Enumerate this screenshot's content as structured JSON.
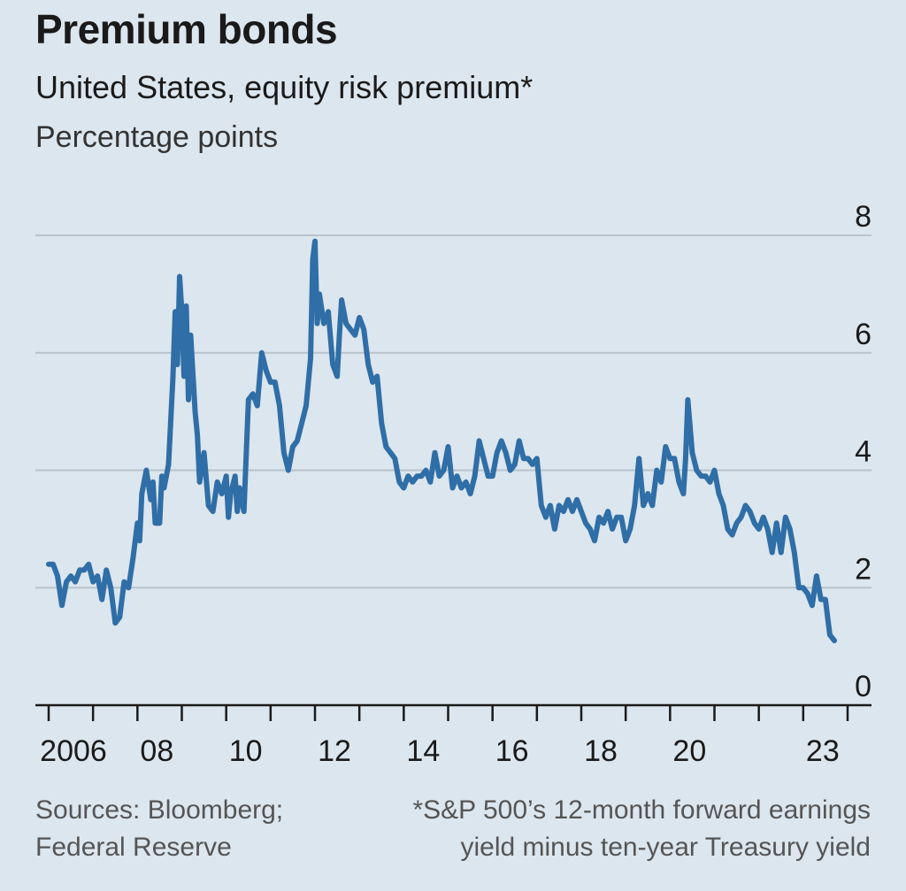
{
  "header": {
    "title": "Premium bonds",
    "subtitle": "United States, equity risk premium*",
    "unit": "Percentage points"
  },
  "footer": {
    "sources_line1": "Sources: Bloomberg;",
    "sources_line2": "Federal Reserve",
    "note_line1": "*S&P 500’s 12-month forward earnings",
    "note_line2": "yield minus ten-year Treasury yield"
  },
  "colors": {
    "background": "#dce6ee",
    "line": "#2f6ea6",
    "grid": "#b8c3cc"
  },
  "chart_data": {
    "type": "line",
    "title": "Premium bonds",
    "subtitle": "United States, equity risk premium*",
    "ylabel": "Percentage points",
    "xlim": [
      2005.8,
      2024.5
    ],
    "ylim": [
      0,
      8
    ],
    "yticks": [
      0,
      2,
      4,
      6,
      8
    ],
    "ytick_labels": [
      "0",
      "2",
      "4",
      "6",
      "8"
    ],
    "xticks": [
      2006,
      2007,
      2008,
      2009,
      2010,
      2011,
      2012,
      2013,
      2014,
      2015,
      2016,
      2017,
      2018,
      2019,
      2020,
      2021,
      2022,
      2023,
      2024
    ],
    "xtick_labels": [
      {
        "x": 2006,
        "label": "2006"
      },
      {
        "x": 2008,
        "label": "08"
      },
      {
        "x": 2010,
        "label": "10"
      },
      {
        "x": 2012,
        "label": "12"
      },
      {
        "x": 2014,
        "label": "14"
      },
      {
        "x": 2016,
        "label": "16"
      },
      {
        "x": 2018,
        "label": "18"
      },
      {
        "x": 2020,
        "label": "20"
      },
      {
        "x": 2023,
        "label": "23"
      }
    ],
    "grid": true,
    "series": [
      {
        "name": "Equity risk premium",
        "points": [
          [
            2006.0,
            2.4
          ],
          [
            2006.1,
            2.4
          ],
          [
            2006.2,
            2.2
          ],
          [
            2006.3,
            1.7
          ],
          [
            2006.4,
            2.1
          ],
          [
            2006.5,
            2.2
          ],
          [
            2006.6,
            2.1
          ],
          [
            2006.7,
            2.3
          ],
          [
            2006.8,
            2.3
          ],
          [
            2006.9,
            2.4
          ],
          [
            2007.0,
            2.1
          ],
          [
            2007.1,
            2.2
          ],
          [
            2007.2,
            1.8
          ],
          [
            2007.3,
            2.3
          ],
          [
            2007.4,
            2.0
          ],
          [
            2007.5,
            1.4
          ],
          [
            2007.6,
            1.5
          ],
          [
            2007.7,
            2.1
          ],
          [
            2007.8,
            2.0
          ],
          [
            2007.9,
            2.5
          ],
          [
            2008.0,
            3.1
          ],
          [
            2008.05,
            2.8
          ],
          [
            2008.1,
            3.6
          ],
          [
            2008.2,
            4.0
          ],
          [
            2008.3,
            3.5
          ],
          [
            2008.35,
            3.8
          ],
          [
            2008.4,
            3.1
          ],
          [
            2008.5,
            3.1
          ],
          [
            2008.55,
            3.9
          ],
          [
            2008.6,
            3.7
          ],
          [
            2008.7,
            4.1
          ],
          [
            2008.8,
            5.6
          ],
          [
            2008.85,
            6.7
          ],
          [
            2008.9,
            5.8
          ],
          [
            2008.95,
            7.3
          ],
          [
            2009.0,
            6.7
          ],
          [
            2009.05,
            5.6
          ],
          [
            2009.1,
            6.8
          ],
          [
            2009.15,
            5.2
          ],
          [
            2009.2,
            6.3
          ],
          [
            2009.3,
            5.0
          ],
          [
            2009.35,
            4.6
          ],
          [
            2009.4,
            3.8
          ],
          [
            2009.5,
            4.3
          ],
          [
            2009.6,
            3.4
          ],
          [
            2009.7,
            3.3
          ],
          [
            2009.8,
            3.8
          ],
          [
            2009.9,
            3.6
          ],
          [
            2010.0,
            3.9
          ],
          [
            2010.05,
            3.2
          ],
          [
            2010.1,
            3.6
          ],
          [
            2010.2,
            3.9
          ],
          [
            2010.25,
            3.3
          ],
          [
            2010.3,
            3.7
          ],
          [
            2010.4,
            3.3
          ],
          [
            2010.5,
            5.2
          ],
          [
            2010.6,
            5.3
          ],
          [
            2010.7,
            5.1
          ],
          [
            2010.8,
            6.0
          ],
          [
            2010.9,
            5.7
          ],
          [
            2011.0,
            5.5
          ],
          [
            2011.1,
            5.5
          ],
          [
            2011.2,
            5.1
          ],
          [
            2011.3,
            4.3
          ],
          [
            2011.4,
            4.0
          ],
          [
            2011.5,
            4.4
          ],
          [
            2011.6,
            4.5
          ],
          [
            2011.7,
            4.8
          ],
          [
            2011.8,
            5.1
          ],
          [
            2011.9,
            5.9
          ],
          [
            2011.95,
            7.6
          ],
          [
            2012.0,
            7.9
          ],
          [
            2012.05,
            6.5
          ],
          [
            2012.1,
            7.0
          ],
          [
            2012.2,
            6.5
          ],
          [
            2012.3,
            6.7
          ],
          [
            2012.4,
            5.8
          ],
          [
            2012.5,
            5.6
          ],
          [
            2012.55,
            6.3
          ],
          [
            2012.6,
            6.9
          ],
          [
            2012.7,
            6.5
          ],
          [
            2012.8,
            6.4
          ],
          [
            2012.9,
            6.3
          ],
          [
            2013.0,
            6.6
          ],
          [
            2013.1,
            6.4
          ],
          [
            2013.2,
            5.8
          ],
          [
            2013.3,
            5.5
          ],
          [
            2013.4,
            5.6
          ],
          [
            2013.5,
            4.8
          ],
          [
            2013.6,
            4.4
          ],
          [
            2013.7,
            4.3
          ],
          [
            2013.8,
            4.2
          ],
          [
            2013.9,
            3.8
          ],
          [
            2014.0,
            3.7
          ],
          [
            2014.1,
            3.9
          ],
          [
            2014.2,
            3.8
          ],
          [
            2014.3,
            3.9
          ],
          [
            2014.4,
            3.9
          ],
          [
            2014.5,
            4.0
          ],
          [
            2014.6,
            3.8
          ],
          [
            2014.7,
            4.3
          ],
          [
            2014.8,
            3.9
          ],
          [
            2014.9,
            4.0
          ],
          [
            2015.0,
            4.4
          ],
          [
            2015.1,
            3.7
          ],
          [
            2015.2,
            3.9
          ],
          [
            2015.3,
            3.7
          ],
          [
            2015.4,
            3.8
          ],
          [
            2015.5,
            3.6
          ],
          [
            2015.6,
            3.9
          ],
          [
            2015.7,
            4.5
          ],
          [
            2015.8,
            4.2
          ],
          [
            2015.9,
            3.9
          ],
          [
            2016.0,
            3.9
          ],
          [
            2016.1,
            4.3
          ],
          [
            2016.2,
            4.5
          ],
          [
            2016.3,
            4.3
          ],
          [
            2016.4,
            4.0
          ],
          [
            2016.5,
            4.1
          ],
          [
            2016.6,
            4.5
          ],
          [
            2016.7,
            4.2
          ],
          [
            2016.8,
            4.2
          ],
          [
            2016.9,
            4.1
          ],
          [
            2017.0,
            4.2
          ],
          [
            2017.1,
            3.4
          ],
          [
            2017.2,
            3.2
          ],
          [
            2017.3,
            3.4
          ],
          [
            2017.4,
            3.0
          ],
          [
            2017.5,
            3.4
          ],
          [
            2017.6,
            3.3
          ],
          [
            2017.7,
            3.5
          ],
          [
            2017.8,
            3.3
          ],
          [
            2017.9,
            3.5
          ],
          [
            2018.0,
            3.3
          ],
          [
            2018.1,
            3.1
          ],
          [
            2018.2,
            3.0
          ],
          [
            2018.3,
            2.8
          ],
          [
            2018.4,
            3.2
          ],
          [
            2018.5,
            3.1
          ],
          [
            2018.6,
            3.3
          ],
          [
            2018.7,
            3.0
          ],
          [
            2018.8,
            3.2
          ],
          [
            2018.9,
            3.2
          ],
          [
            2019.0,
            2.8
          ],
          [
            2019.1,
            3.0
          ],
          [
            2019.2,
            3.4
          ],
          [
            2019.3,
            4.2
          ],
          [
            2019.4,
            3.4
          ],
          [
            2019.5,
            3.6
          ],
          [
            2019.6,
            3.4
          ],
          [
            2019.7,
            4.0
          ],
          [
            2019.8,
            3.8
          ],
          [
            2019.9,
            4.4
          ],
          [
            2020.0,
            4.2
          ],
          [
            2020.1,
            4.2
          ],
          [
            2020.2,
            3.8
          ],
          [
            2020.3,
            3.6
          ],
          [
            2020.35,
            4.2
          ],
          [
            2020.4,
            5.2
          ],
          [
            2020.5,
            4.3
          ],
          [
            2020.6,
            4.0
          ],
          [
            2020.7,
            3.9
          ],
          [
            2020.8,
            3.9
          ],
          [
            2020.9,
            3.8
          ],
          [
            2021.0,
            4.0
          ],
          [
            2021.1,
            3.6
          ],
          [
            2021.2,
            3.4
          ],
          [
            2021.3,
            3.0
          ],
          [
            2021.4,
            2.9
          ],
          [
            2021.5,
            3.1
          ],
          [
            2021.6,
            3.2
          ],
          [
            2021.7,
            3.4
          ],
          [
            2021.8,
            3.3
          ],
          [
            2021.9,
            3.1
          ],
          [
            2022.0,
            3.0
          ],
          [
            2022.1,
            3.2
          ],
          [
            2022.2,
            3.0
          ],
          [
            2022.3,
            2.6
          ],
          [
            2022.4,
            3.1
          ],
          [
            2022.5,
            2.6
          ],
          [
            2022.6,
            3.2
          ],
          [
            2022.7,
            3.0
          ],
          [
            2022.8,
            2.6
          ],
          [
            2022.9,
            2.0
          ],
          [
            2023.0,
            2.0
          ],
          [
            2023.1,
            1.9
          ],
          [
            2023.2,
            1.7
          ],
          [
            2023.3,
            2.2
          ],
          [
            2023.4,
            1.8
          ],
          [
            2023.5,
            1.8
          ],
          [
            2023.6,
            1.2
          ],
          [
            2023.7,
            1.1
          ]
        ]
      }
    ]
  }
}
